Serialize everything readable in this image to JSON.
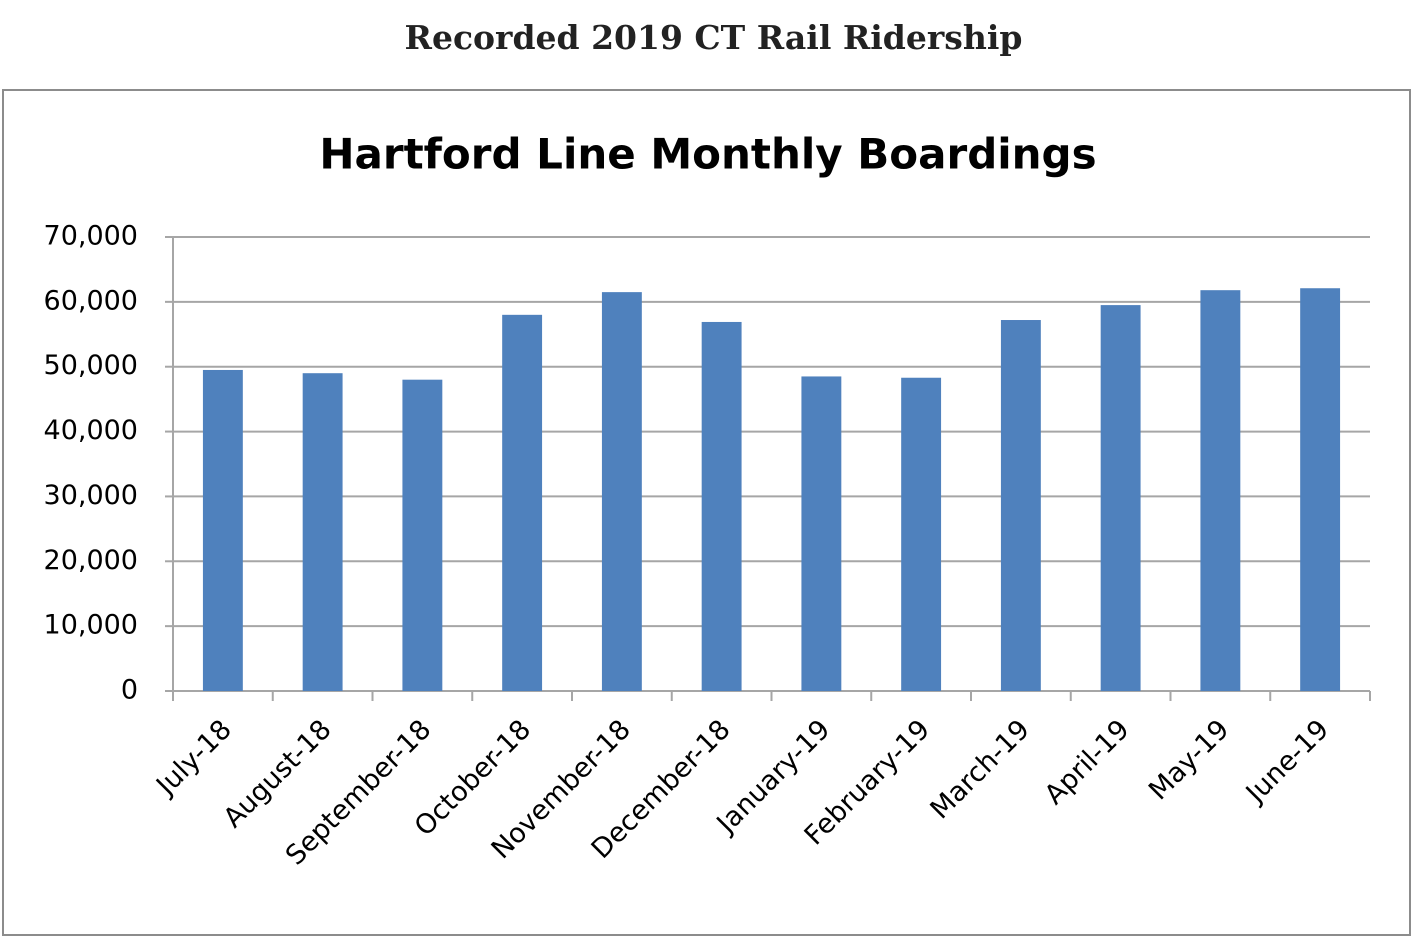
{
  "page_title": "Recorded 2019 CT Rail Ridership",
  "chart_data": {
    "type": "bar",
    "title": "Hartford Line Monthly Boardings",
    "categories": [
      "July-18",
      "August-18",
      "September-18",
      "October-18",
      "November-18",
      "December-18",
      "January-19",
      "February-19",
      "March-19",
      "April-19",
      "May-19",
      "June-19"
    ],
    "values": [
      49500,
      49000,
      48000,
      58000,
      61500,
      56900,
      48500,
      48300,
      57200,
      59500,
      61800,
      62100
    ],
    "color": "#4f81bd",
    "ylim": [
      0,
      70000
    ],
    "yticks": [
      0,
      {
        "value": 10000,
        "label": "10,000"
      },
      {
        "value": 20000,
        "label": "20,000"
      },
      {
        "value": 30000,
        "label": "30,000"
      },
      {
        "value": 40000,
        "label": "40,000"
      },
      {
        "value": 50000,
        "label": "50,000"
      },
      {
        "value": 60000,
        "label": "60,000"
      },
      {
        "value": 70000,
        "label": "70,000"
      }
    ],
    "grid": true
  }
}
